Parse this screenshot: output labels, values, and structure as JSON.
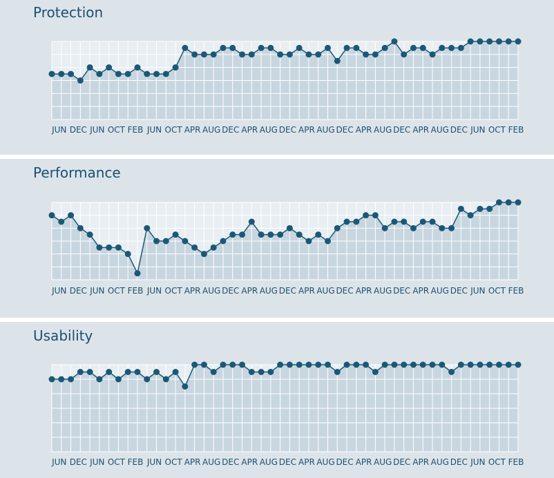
{
  "chart_data": [
    {
      "type": "line",
      "title": "Protection",
      "color": "#1b5876",
      "ylim": [
        0,
        6
      ],
      "grid": true,
      "categories": [
        null,
        "JUN",
        null,
        "DEC",
        null,
        "JUN",
        null,
        "OCT",
        null,
        "FEB",
        null,
        "JUN",
        null,
        "OCT",
        null,
        "APR",
        null,
        "AUG",
        null,
        "DEC",
        null,
        "APR",
        null,
        "AUG",
        null,
        "DEC",
        null,
        "APR",
        null,
        "AUG",
        null,
        "DEC",
        null,
        "APR",
        null,
        "AUG",
        null,
        "DEC",
        null,
        "APR",
        null,
        "AUG",
        null,
        "DEC",
        null,
        "JUN",
        null,
        "OCT",
        null,
        "FEB"
      ],
      "values": [
        3.5,
        3.5,
        3.5,
        3,
        4,
        3.5,
        4,
        3.5,
        3.5,
        4,
        3.5,
        3.5,
        3.5,
        4,
        5.5,
        5,
        5,
        5,
        5.5,
        5.5,
        5,
        5,
        5.5,
        5.5,
        5,
        5,
        5.5,
        5,
        5,
        5.5,
        4.5,
        5.5,
        5.5,
        5,
        5,
        5.5,
        6,
        5,
        5.5,
        5.5,
        5,
        5.5,
        5.5,
        5.5,
        6,
        6,
        6,
        6,
        6,
        6
      ]
    },
    {
      "type": "line",
      "title": "Performance",
      "color": "#1b5876",
      "ylim": [
        0,
        6
      ],
      "grid": true,
      "categories": [
        null,
        "JUN",
        null,
        "DEC",
        null,
        "JUN",
        null,
        "OCT",
        null,
        "FEB",
        null,
        "JUN",
        null,
        "OCT",
        null,
        "APR",
        null,
        "AUG",
        null,
        "DEC",
        null,
        "APR",
        null,
        "AUG",
        null,
        "DEC",
        null,
        "APR",
        null,
        "AUG",
        null,
        "DEC",
        null,
        "APR",
        null,
        "AUG",
        null,
        "DEC",
        null,
        "APR",
        null,
        "AUG",
        null,
        "DEC",
        null,
        "JUN",
        null,
        "OCT",
        null,
        "FEB"
      ],
      "values": [
        5,
        4.5,
        5,
        4,
        3.5,
        2.5,
        2.5,
        2.5,
        2,
        0.5,
        4,
        3,
        3,
        3.5,
        3,
        2.5,
        2,
        2.5,
        3,
        3.5,
        3.5,
        4.5,
        3.5,
        3.5,
        3.5,
        4,
        3.5,
        3,
        3.5,
        3,
        4,
        4.5,
        4.5,
        5,
        5,
        4,
        4.5,
        4.5,
        4,
        4.5,
        4.5,
        4,
        4,
        5.5,
        5,
        5.5,
        5.5,
        6,
        6,
        6
      ]
    },
    {
      "type": "line",
      "title": "Usability",
      "color": "#1b5876",
      "ylim": [
        0,
        6
      ],
      "grid": true,
      "categories": [
        null,
        "JUN",
        null,
        "DEC",
        null,
        "JUN",
        null,
        "OCT",
        null,
        "FEB",
        null,
        "JUN",
        null,
        "OCT",
        null,
        "APR",
        null,
        "AUG",
        null,
        "DEC",
        null,
        "APR",
        null,
        "AUG",
        null,
        "DEC",
        null,
        "APR",
        null,
        "AUG",
        null,
        "DEC",
        null,
        "APR",
        null,
        "AUG",
        null,
        "DEC",
        null,
        "APR",
        null,
        "AUG",
        null,
        "DEC",
        null,
        "JUN",
        null,
        "OCT",
        null,
        "FEB"
      ],
      "values": [
        5,
        5,
        5,
        5.5,
        5.5,
        5,
        5.5,
        5,
        5.5,
        5.5,
        5,
        5.5,
        5,
        5.5,
        4.5,
        6,
        6,
        5.5,
        6,
        6,
        6,
        5.5,
        5.5,
        5.5,
        6,
        6,
        6,
        6,
        6,
        6,
        5.5,
        6,
        6,
        6,
        5.5,
        6,
        6,
        6,
        6,
        6,
        6,
        6,
        5.5,
        6,
        6,
        6,
        6,
        6,
        6,
        6
      ]
    }
  ]
}
